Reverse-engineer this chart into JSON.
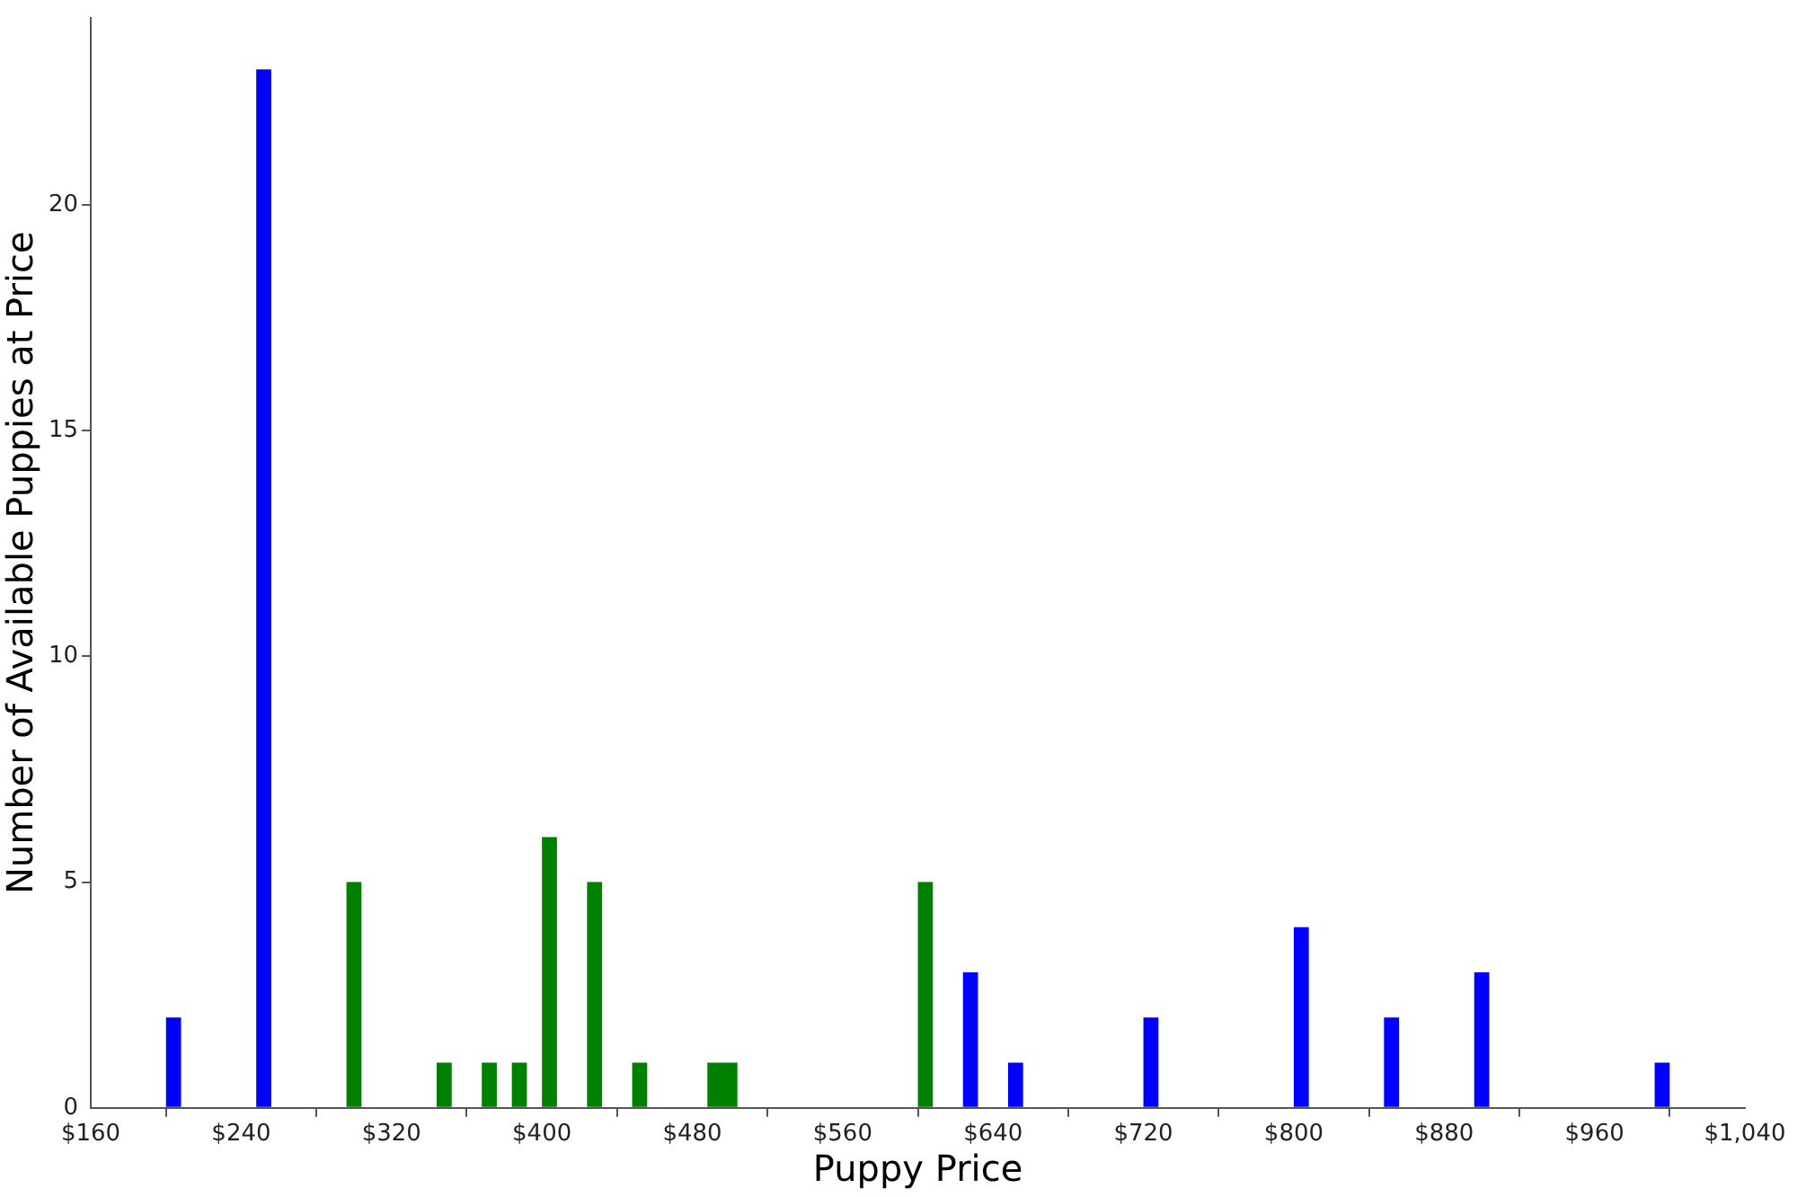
{
  "chart_data": {
    "type": "histogram",
    "xlabel": "Puppy Price",
    "ylabel": "Number of Available Puppies at Price",
    "bins": [
      200,
      208,
      216,
      224,
      232,
      240,
      248,
      256,
      264,
      272,
      280,
      288,
      296,
      304,
      312,
      320,
      328,
      336,
      344,
      352,
      360,
      368,
      376,
      384,
      392,
      400,
      408,
      416,
      424,
      432,
      440,
      448,
      456,
      464,
      472,
      480,
      488,
      496,
      504,
      512,
      520,
      528,
      536,
      544,
      552,
      560,
      568,
      576,
      584,
      592,
      600,
      608,
      616,
      624,
      632,
      640,
      648,
      656,
      664,
      672,
      680,
      688,
      696,
      704,
      712,
      720,
      728,
      736,
      744,
      752,
      760,
      768,
      776,
      784,
      792,
      800,
      808,
      816,
      824,
      832,
      840,
      848,
      856,
      864,
      872,
      880,
      888,
      896,
      904,
      912,
      920,
      928,
      936,
      944,
      952,
      960,
      968,
      976,
      984,
      992,
      1000
    ],
    "series": [
      {
        "color": "#0000ff",
        "values": [
          2,
          0,
          0,
          0,
          0,
          0,
          23,
          0,
          0,
          0,
          0,
          0,
          0,
          0,
          0,
          0,
          0,
          0,
          0,
          0,
          0,
          0,
          0,
          0,
          0,
          0,
          0,
          0,
          0,
          0,
          0,
          0,
          0,
          0,
          0,
          0,
          0,
          0,
          0,
          0,
          0,
          0,
          0,
          0,
          0,
          0,
          0,
          0,
          0,
          0,
          0,
          0,
          0,
          3,
          0,
          0,
          1,
          0,
          0,
          0,
          0,
          0,
          0,
          0,
          0,
          2,
          0,
          0,
          0,
          0,
          0,
          0,
          0,
          0,
          0,
          4,
          0,
          0,
          0,
          0,
          0,
          2,
          0,
          0,
          0,
          0,
          0,
          3,
          0,
          0,
          0,
          0,
          0,
          0,
          0,
          0,
          0,
          0,
          0,
          1
        ]
      },
      {
        "color": "#008000",
        "values": [
          0,
          0,
          0,
          0,
          0,
          0,
          0,
          0,
          0,
          0,
          0,
          0,
          5,
          0,
          0,
          0,
          0,
          0,
          1,
          0,
          0,
          1,
          0,
          1,
          0,
          6,
          0,
          0,
          5,
          0,
          0,
          1,
          0,
          0,
          0,
          0,
          1,
          1,
          0,
          0,
          0,
          0,
          0,
          0,
          0,
          0,
          0,
          0,
          0,
          0,
          5,
          0,
          0,
          0,
          0,
          0,
          0,
          0,
          0,
          0,
          0,
          0,
          0,
          0,
          0,
          0,
          0,
          0,
          0,
          0,
          0,
          0,
          0,
          0,
          0,
          0,
          0,
          0,
          0,
          0,
          0,
          0,
          0,
          0,
          0,
          0,
          0,
          0,
          0,
          0,
          0,
          0,
          0,
          0,
          0,
          0,
          0,
          0,
          0,
          0
        ]
      }
    ],
    "xlim": [
      160,
      1040
    ],
    "xticks": [
      {
        "value": 160,
        "label": "$160"
      },
      {
        "value": 240,
        "label": "$240"
      },
      {
        "value": 320,
        "label": "$320"
      },
      {
        "value": 400,
        "label": "$400"
      },
      {
        "value": 480,
        "label": "$480"
      },
      {
        "value": 560,
        "label": "$560"
      },
      {
        "value": 640,
        "label": "$640"
      },
      {
        "value": 720,
        "label": "$720"
      },
      {
        "value": 800,
        "label": "$800"
      },
      {
        "value": 880,
        "label": "$880"
      },
      {
        "value": 960,
        "label": "$960"
      },
      {
        "value": 1040,
        "label": "$1,040"
      }
    ],
    "ylim": [
      0,
      24.15
    ],
    "yticks": [
      0,
      5,
      10,
      15,
      20
    ]
  }
}
